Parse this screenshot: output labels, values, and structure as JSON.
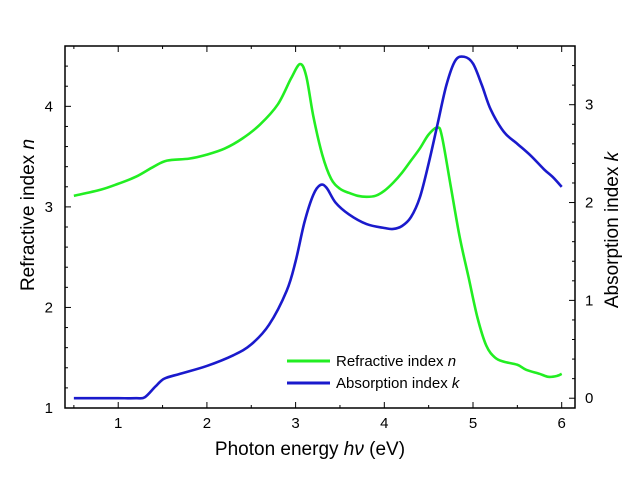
{
  "chart_data": {
    "type": "line",
    "xlabel": {
      "main": "Photon energy ",
      "var": "hν",
      "unit": " (eV)"
    },
    "ylabel_left": {
      "main": "Refractive index ",
      "var": "n"
    },
    "ylabel_right": {
      "main": "Absorption index  ",
      "var": "k"
    },
    "xlim": [
      0.4,
      6.15
    ],
    "ylim_left": [
      1.0,
      4.6
    ],
    "ylim_right": [
      -0.1,
      3.6
    ],
    "x_ticks": [
      1,
      2,
      3,
      4,
      5,
      6
    ],
    "y_ticks_left": [
      1,
      2,
      3,
      4
    ],
    "y_ticks_right": [
      0,
      1,
      2,
      3
    ],
    "grid": false,
    "legend_position": "lower-right",
    "series": [
      {
        "name": "Refractive index ",
        "name_var": "n",
        "color": "#22ee22",
        "axis": "left",
        "points": [
          [
            0.5,
            3.11
          ],
          [
            0.8,
            3.17
          ],
          [
            1.0,
            3.23
          ],
          [
            1.2,
            3.3
          ],
          [
            1.4,
            3.4
          ],
          [
            1.55,
            3.46
          ],
          [
            1.8,
            3.48
          ],
          [
            2.0,
            3.52
          ],
          [
            2.2,
            3.58
          ],
          [
            2.4,
            3.68
          ],
          [
            2.6,
            3.82
          ],
          [
            2.8,
            4.02
          ],
          [
            2.95,
            4.28
          ],
          [
            3.05,
            4.42
          ],
          [
            3.12,
            4.3
          ],
          [
            3.2,
            3.9
          ],
          [
            3.3,
            3.52
          ],
          [
            3.4,
            3.28
          ],
          [
            3.5,
            3.18
          ],
          [
            3.6,
            3.14
          ],
          [
            3.7,
            3.11
          ],
          [
            3.8,
            3.1
          ],
          [
            3.9,
            3.11
          ],
          [
            4.0,
            3.16
          ],
          [
            4.1,
            3.24
          ],
          [
            4.2,
            3.34
          ],
          [
            4.3,
            3.46
          ],
          [
            4.4,
            3.58
          ],
          [
            4.5,
            3.72
          ],
          [
            4.6,
            3.79
          ],
          [
            4.65,
            3.7
          ],
          [
            4.75,
            3.2
          ],
          [
            4.85,
            2.7
          ],
          [
            4.95,
            2.3
          ],
          [
            5.05,
            1.9
          ],
          [
            5.15,
            1.62
          ],
          [
            5.25,
            1.5
          ],
          [
            5.35,
            1.46
          ],
          [
            5.5,
            1.43
          ],
          [
            5.6,
            1.38
          ],
          [
            5.75,
            1.34
          ],
          [
            5.85,
            1.31
          ],
          [
            5.95,
            1.32
          ],
          [
            6.0,
            1.34
          ]
        ]
      },
      {
        "name": "Absorption index ",
        "name_var": "k",
        "color": "#1a1acc",
        "axis": "right",
        "points": [
          [
            0.5,
            0.0
          ],
          [
            0.8,
            0.0
          ],
          [
            1.0,
            0.0
          ],
          [
            1.2,
            0.0
          ],
          [
            1.3,
            0.01
          ],
          [
            1.42,
            0.12
          ],
          [
            1.52,
            0.2
          ],
          [
            1.7,
            0.25
          ],
          [
            2.0,
            0.33
          ],
          [
            2.3,
            0.44
          ],
          [
            2.5,
            0.55
          ],
          [
            2.7,
            0.75
          ],
          [
            2.9,
            1.1
          ],
          [
            3.0,
            1.4
          ],
          [
            3.1,
            1.8
          ],
          [
            3.2,
            2.08
          ],
          [
            3.28,
            2.18
          ],
          [
            3.35,
            2.15
          ],
          [
            3.45,
            2.0
          ],
          [
            3.6,
            1.88
          ],
          [
            3.8,
            1.78
          ],
          [
            4.0,
            1.74
          ],
          [
            4.1,
            1.73
          ],
          [
            4.2,
            1.76
          ],
          [
            4.3,
            1.85
          ],
          [
            4.4,
            2.05
          ],
          [
            4.5,
            2.4
          ],
          [
            4.6,
            2.8
          ],
          [
            4.7,
            3.2
          ],
          [
            4.8,
            3.45
          ],
          [
            4.9,
            3.49
          ],
          [
            5.0,
            3.42
          ],
          [
            5.1,
            3.2
          ],
          [
            5.2,
            2.95
          ],
          [
            5.35,
            2.72
          ],
          [
            5.5,
            2.6
          ],
          [
            5.65,
            2.48
          ],
          [
            5.8,
            2.34
          ],
          [
            5.9,
            2.26
          ],
          [
            6.0,
            2.16
          ]
        ]
      }
    ]
  }
}
